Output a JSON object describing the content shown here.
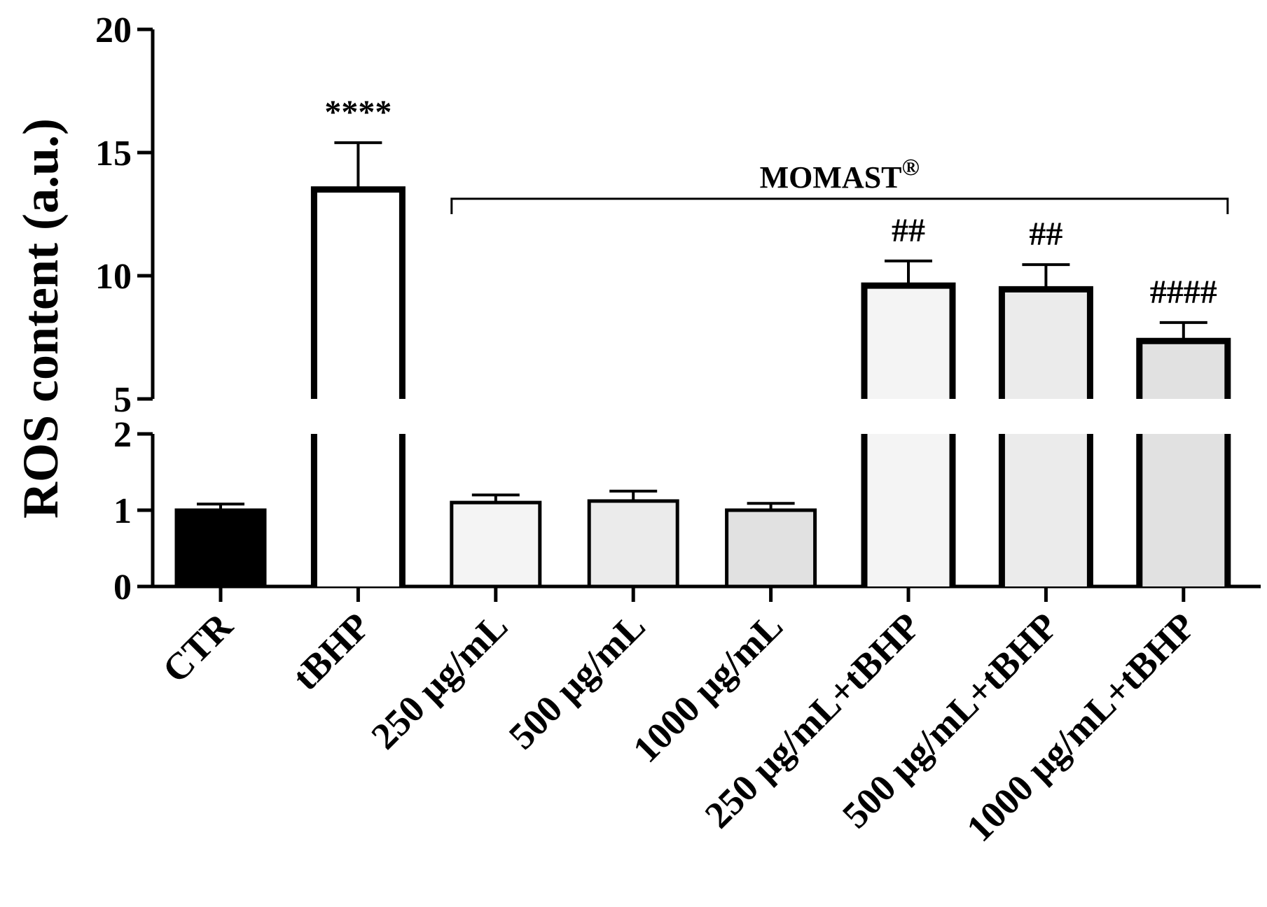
{
  "chart_data": {
    "type": "bar",
    "title": "",
    "xlabel": "",
    "ylabel": "ROS content (a.u.)",
    "axis_break": {
      "lower_range": [
        0,
        2
      ],
      "upper_range": [
        5,
        20
      ]
    },
    "y_ticks_lower": [
      "0",
      "1",
      "2"
    ],
    "y_ticks_upper": [
      "5",
      "10",
      "15",
      "20"
    ],
    "categories": [
      "CTR",
      "tBHP",
      "250 μg/mL",
      "500 μg/mL",
      "1000 μg/mL",
      "250 μg/mL+tBHP",
      "500 μg/mL+tBHP",
      "1000 μg/mL+tBHP"
    ],
    "values": [
      1.0,
      13.5,
      1.1,
      1.12,
      1.0,
      9.6,
      9.45,
      7.35
    ],
    "errors": [
      0.08,
      1.9,
      0.1,
      0.13,
      0.09,
      1.0,
      1.0,
      0.75
    ],
    "fill_colors": [
      "#000000",
      "#ffffff",
      "#f4f4f4",
      "#ebebeb",
      "#e1e1e1",
      "#f4f4f4",
      "#ebebeb",
      "#e1e1e1"
    ],
    "annotations": [
      "",
      "****",
      "",
      "",
      "",
      "##",
      "##",
      "####"
    ],
    "bracket": {
      "label": "MOMAST",
      "superscript": "®",
      "from_category": 2,
      "to_category": 7
    }
  }
}
